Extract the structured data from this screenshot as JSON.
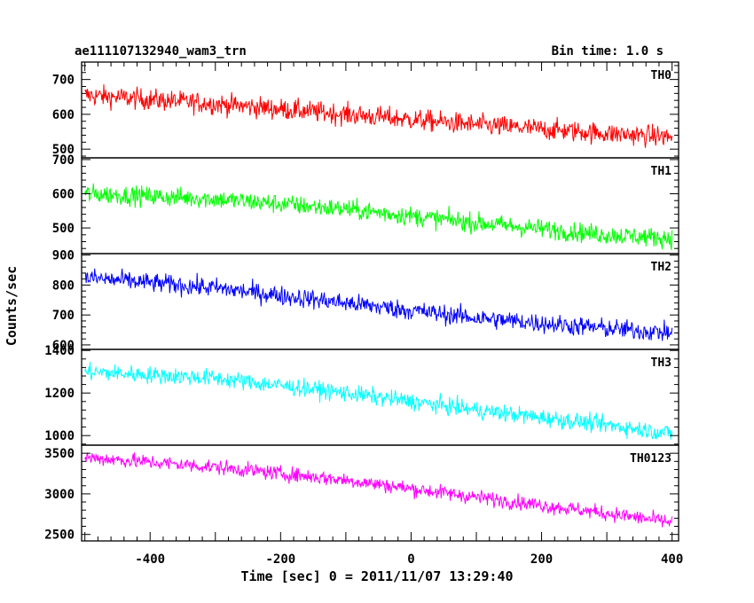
{
  "header": {
    "title": "ae111107132940_wam3_trn",
    "bin_time": "Bin time: 1.0 s"
  },
  "chart_data": {
    "type": "line",
    "title": "ae111107132940_wam3_trn",
    "subtitle": "Bin time: 1.0 s",
    "xlabel": "Time [sec] 0 = 2011/11/07 13:29:40",
    "ylabel": "Counts/sec",
    "xlim": [
      -505,
      410
    ],
    "xticks": [
      -400,
      -200,
      0,
      200,
      400
    ],
    "x_range_data": [
      -500,
      400
    ],
    "grid": false,
    "panels": [
      {
        "name": "TH0",
        "color": "#ff0000",
        "ylim": [
          475,
          750
        ],
        "yticks": [
          500,
          600,
          700
        ],
        "trend": {
          "x": [
            -500,
            -300,
            -100,
            100,
            300,
            400
          ],
          "y": [
            655,
            630,
            600,
            570,
            545,
            535
          ]
        },
        "noise_amplitude": 30
      },
      {
        "name": "TH1",
        "color": "#00ff00",
        "ylim": [
          425,
          705
        ],
        "yticks": [
          500,
          600,
          700
        ],
        "trend": {
          "x": [
            -500,
            -300,
            -100,
            100,
            300,
            400
          ],
          "y": [
            600,
            585,
            555,
            515,
            480,
            470
          ]
        },
        "noise_amplitude": 28
      },
      {
        "name": "TH2",
        "color": "#0000ff",
        "ylim": [
          585,
          905
        ],
        "yticks": [
          600,
          700,
          800,
          900
        ],
        "trend": {
          "x": [
            -500,
            -300,
            -100,
            100,
            300,
            400
          ],
          "y": [
            825,
            790,
            740,
            690,
            655,
            640
          ]
        },
        "noise_amplitude": 32
      },
      {
        "name": "TH3",
        "color": "#00ffff",
        "ylim": [
          955,
          1405
        ],
        "yticks": [
          1000,
          1200,
          1400
        ],
        "trend": {
          "x": [
            -500,
            -300,
            -100,
            100,
            300,
            400
          ],
          "y": [
            1300,
            1270,
            1200,
            1120,
            1050,
            1010
          ]
        },
        "noise_amplitude": 40
      },
      {
        "name": "TH0123",
        "color": "#ff00ff",
        "ylim": [
          2420,
          3600
        ],
        "yticks": [
          2500,
          3000,
          3500
        ],
        "trend": {
          "x": [
            -500,
            -300,
            -100,
            100,
            300,
            400
          ],
          "y": [
            3450,
            3330,
            3170,
            2960,
            2760,
            2650
          ]
        },
        "noise_amplitude": 90
      }
    ]
  }
}
